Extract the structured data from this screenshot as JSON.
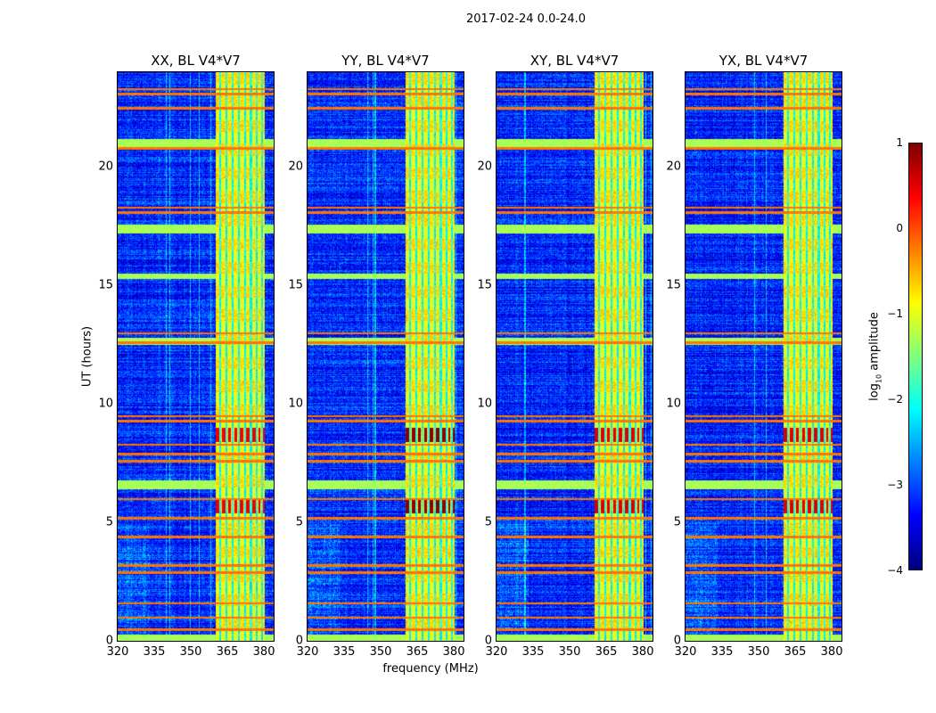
{
  "chart_data": {
    "type": "heatmap",
    "title": "2017-02-24 0.0-24.0",
    "xlabel": "frequency (MHz)",
    "ylabel": "UT (hours)",
    "xlim": [
      320,
      384
    ],
    "ylim": [
      0,
      24
    ],
    "xticks": [
      "320",
      "335",
      "350",
      "365",
      "380"
    ],
    "xtick_values": [
      320,
      335,
      350,
      365,
      380
    ],
    "yticks": [
      "0",
      "5",
      "10",
      "15",
      "20"
    ],
    "ytick_values": [
      0,
      5,
      10,
      15,
      20
    ],
    "panels": [
      {
        "title": "XX, BL V4*V7",
        "hot_level": 0.3
      },
      {
        "title": "YY, BL V4*V7",
        "hot_level": 0.8
      },
      {
        "title": "XY, BL V4*V7",
        "hot_level": 0.4
      },
      {
        "title": "YX, BL V4*V7",
        "hot_level": 0.4
      }
    ],
    "colorbar": {
      "label": "log10 amplitude",
      "label_main": "log",
      "label_sub": "10",
      "label_rest": " amplitude",
      "range": [
        -4,
        1
      ],
      "ticks": [
        "−4",
        "−3",
        "−2",
        "−1",
        "0",
        "1"
      ],
      "tick_values": [
        -4,
        -3,
        -2,
        -1,
        0,
        1
      ],
      "colormap": "jet"
    },
    "background_level": -3.2,
    "rfi_band_mhz": [
      360,
      380
    ],
    "rfi_band_level": -1.0,
    "rfi_subchannels_mhz": [
      362,
      364.5,
      367,
      369.5,
      372,
      374.5,
      377,
      379
    ],
    "hot_time_ranges_hours": [
      [
        5.4,
        6.0
      ],
      [
        8.4,
        9.0
      ]
    ],
    "orange_lines_hours": [
      0.5,
      1.0,
      1.6,
      2.9,
      3.2,
      4.4,
      5.2,
      6.0,
      7.6,
      7.9,
      8.3,
      9.3,
      9.5,
      12.6,
      13.0,
      18.1,
      18.3,
      20.8,
      22.5,
      23.1,
      23.3
    ],
    "green_bands_hours": [
      [
        0.0,
        0.3
      ],
      [
        6.4,
        6.8
      ],
      [
        15.3,
        15.5
      ],
      [
        20.8,
        21.2
      ],
      [
        17.2,
        17.6
      ],
      [
        12.5,
        12.8
      ]
    ]
  }
}
